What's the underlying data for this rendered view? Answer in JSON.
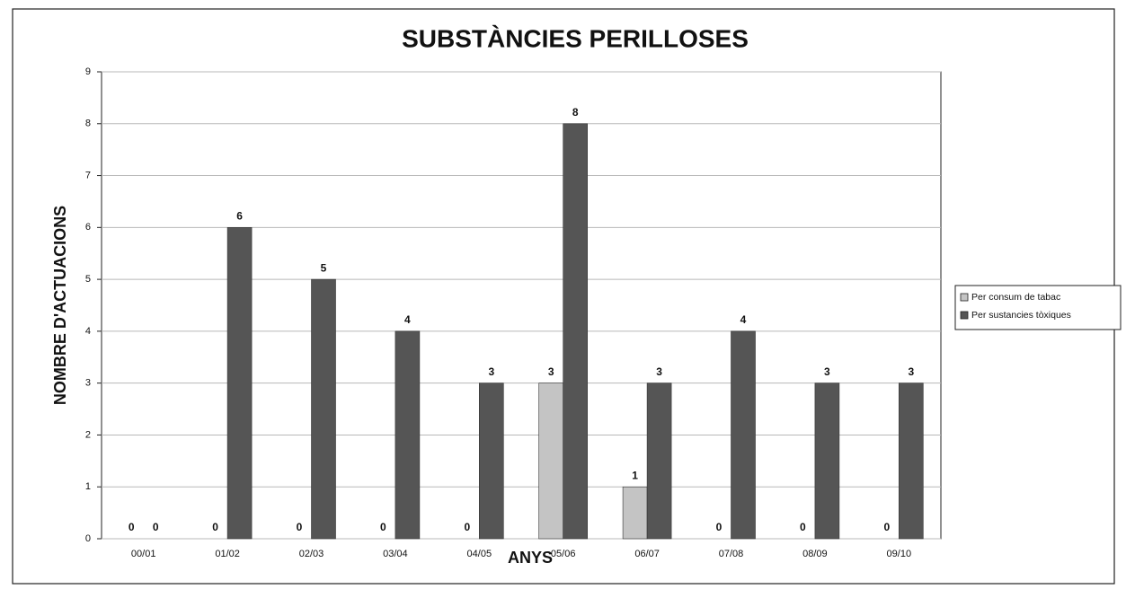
{
  "chart_data": {
    "type": "bar",
    "title": "SUBSTÀNCIES PERILLOSES",
    "x_label": "ANYS",
    "y_label": "NOMBRE D'ACTUACIONS",
    "categories": [
      "00/01",
      "01/02",
      "02/03",
      "03/04",
      "04/05",
      "05/06",
      "06/07",
      "07/08",
      "08/09",
      "09/10"
    ],
    "series": [
      {
        "name": "Per consum de tabac",
        "color": "#c4c4c4",
        "values": [
          0,
          0,
          0,
          0,
          0,
          3,
          1,
          0,
          0,
          0
        ]
      },
      {
        "name": "Per sustancies tòxiques",
        "color": "#555555",
        "values": [
          0,
          6,
          5,
          4,
          3,
          8,
          3,
          4,
          3,
          3
        ]
      }
    ],
    "ylim": [
      0,
      9
    ],
    "yticks": [
      0,
      1,
      2,
      3,
      4,
      5,
      6,
      7,
      8,
      9
    ],
    "grid": true,
    "legend": "right"
  }
}
